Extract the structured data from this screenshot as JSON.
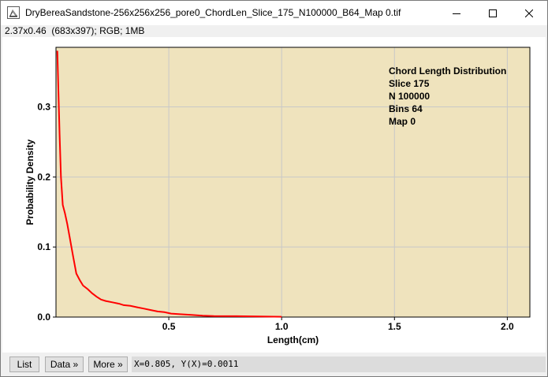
{
  "window": {
    "title": "DryBereaSandstone-256x256x256_pore0_ChordLen_Slice_175_N100000_B64_Map 0.tif",
    "icon": "imagej-icon",
    "controls": [
      "minimize-icon",
      "maximize-icon",
      "close-icon"
    ]
  },
  "info_line": "2.37x0.46  (683x397); RGB; 1MB",
  "chart_data": {
    "type": "line",
    "xlabel": "Length(cm)",
    "ylabel": "Probability Density",
    "xlim": [
      0,
      2.1
    ],
    "ylim": [
      0,
      0.385
    ],
    "xticks": [
      0.5,
      1.0,
      1.5,
      2.0
    ],
    "xtick_labels": [
      "0.5",
      "1.0",
      "1.5",
      "2.0"
    ],
    "yticks": [
      0.0,
      0.1,
      0.2,
      0.3
    ],
    "ytick_labels": [
      "0.0",
      "0.1",
      "0.2",
      "0.3"
    ],
    "grid": true,
    "plot_background": "#efe3bd",
    "series": [
      {
        "color": "#ff0000",
        "x": [
          0.006,
          0.01,
          0.016,
          0.022,
          0.03,
          0.04,
          0.05,
          0.06,
          0.075,
          0.09,
          0.105,
          0.12,
          0.14,
          0.16,
          0.18,
          0.2,
          0.22,
          0.25,
          0.28,
          0.3,
          0.33,
          0.36,
          0.39,
          0.42,
          0.45,
          0.48,
          0.51,
          0.55,
          0.6,
          0.65,
          0.7,
          0.8,
          0.9,
          1.0
        ],
        "y": [
          0.38,
          0.33,
          0.26,
          0.2,
          0.16,
          0.148,
          0.133,
          0.115,
          0.088,
          0.062,
          0.053,
          0.045,
          0.04,
          0.034,
          0.029,
          0.025,
          0.023,
          0.021,
          0.019,
          0.017,
          0.016,
          0.014,
          0.012,
          0.01,
          0.008,
          0.007,
          0.005,
          0.004,
          0.003,
          0.002,
          0.0015,
          0.0012,
          0.0008,
          0.0005
        ]
      }
    ],
    "annotation": [
      "Chord Length Distribution",
      "Slice 175",
      "N 100000",
      "Bins 64",
      "Map 0"
    ]
  },
  "buttons": {
    "list": "List",
    "data": "Data »",
    "more": "More »"
  },
  "status": "X=0.805, Y(X)=0.0011"
}
